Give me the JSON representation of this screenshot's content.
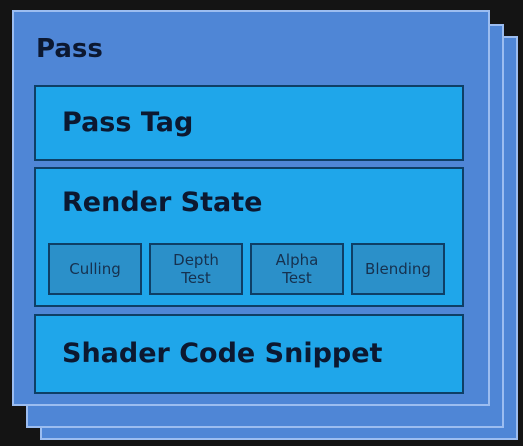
{
  "pass": {
    "title": "Pass",
    "sections": {
      "pass_tag": "Pass Tag",
      "render_state": {
        "title": "Render State",
        "states": [
          "Culling",
          "Depth\nTest",
          "Alpha\nTest",
          "Blending"
        ]
      },
      "shader": "Shader Code Snippet"
    }
  },
  "colors": {
    "background": "#141414",
    "pass_card": "#4f86d6",
    "section": "#1fa6ea",
    "state_box": "#2b90c9",
    "text": "#0c1830"
  }
}
